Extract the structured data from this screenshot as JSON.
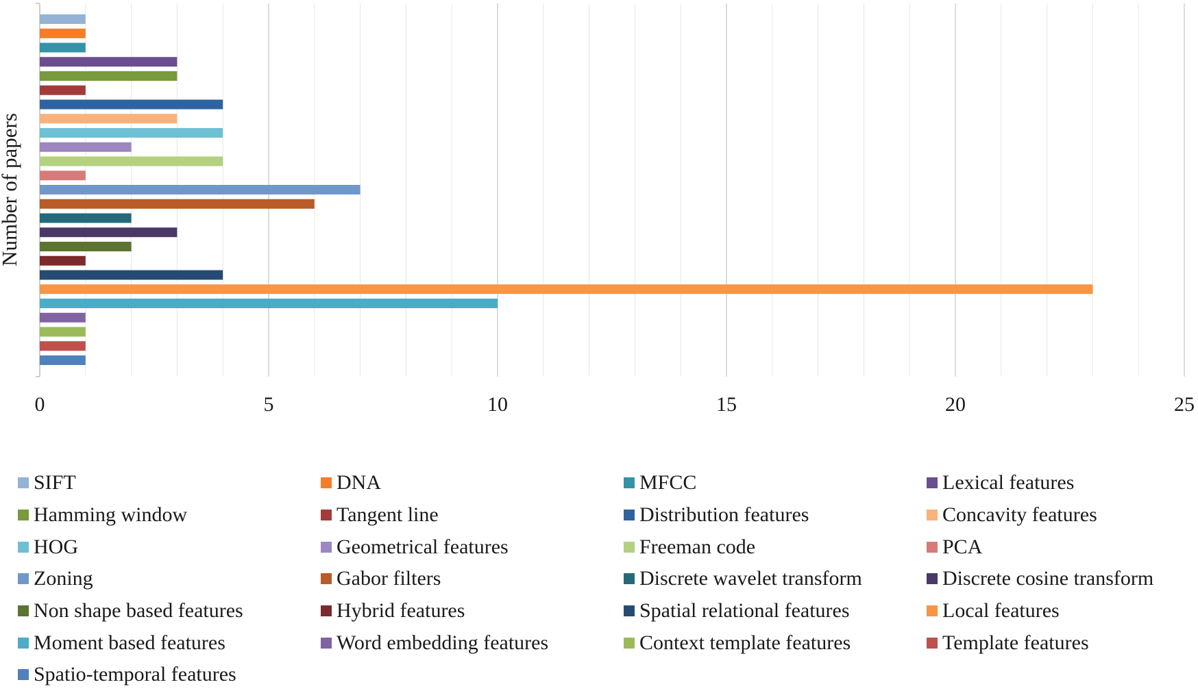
{
  "chart_data": {
    "type": "bar",
    "orientation": "horizontal",
    "title": "",
    "xlabel": "",
    "ylabel": "Number of papers",
    "xlim": [
      0,
      25
    ],
    "x_ticks": [
      0,
      5,
      10,
      15,
      20,
      25
    ],
    "grid": "vertical",
    "legend_position": "bottom",
    "series": [
      {
        "name": "SIFT",
        "value": 1,
        "color": "#95B3D7"
      },
      {
        "name": "DNA",
        "value": 1,
        "color": "#F57D29"
      },
      {
        "name": "MFCC",
        "value": 1,
        "color": "#3593A8"
      },
      {
        "name": "Lexical features",
        "value": 3,
        "color": "#6A4E8E"
      },
      {
        "name": "Hamming window",
        "value": 3,
        "color": "#7A9A3E"
      },
      {
        "name": "Tangent line",
        "value": 1,
        "color": "#A33B3B"
      },
      {
        "name": "Distribution features",
        "value": 4,
        "color": "#2F63A0"
      },
      {
        "name": "Concavity features",
        "value": 3,
        "color": "#F9B27A"
      },
      {
        "name": "HOG",
        "value": 4,
        "color": "#6EC0D5"
      },
      {
        "name": "Geometrical features",
        "value": 2,
        "color": "#9D87C0"
      },
      {
        "name": "Freeman code",
        "value": 4,
        "color": "#B3D17F"
      },
      {
        "name": "PCA",
        "value": 1,
        "color": "#D67B7A"
      },
      {
        "name": "Zoning",
        "value": 7,
        "color": "#7097CB"
      },
      {
        "name": "Gabor filters",
        "value": 6,
        "color": "#B85C28"
      },
      {
        "name": "Discrete wavelet transform",
        "value": 2,
        "color": "#246A7A"
      },
      {
        "name": "Discrete cosine transform",
        "value": 3,
        "color": "#4A3866"
      },
      {
        "name": "Non shape based features",
        "value": 2,
        "color": "#5D7431"
      },
      {
        "name": "Hybrid features",
        "value": 1,
        "color": "#7D2A2C"
      },
      {
        "name": "Spatial relational features",
        "value": 4,
        "color": "#254B74"
      },
      {
        "name": "Local features",
        "value": 23,
        "color": "#F79646"
      },
      {
        "name": "Moment based features",
        "value": 10,
        "color": "#4BACC6"
      },
      {
        "name": "Word embedding features",
        "value": 1,
        "color": "#8064A2"
      },
      {
        "name": "Context template features",
        "value": 1,
        "color": "#9BBB59"
      },
      {
        "name": "Template features",
        "value": 1,
        "color": "#C0504D"
      },
      {
        "name": "Spatio-temporal features",
        "value": 1,
        "color": "#4F81BD"
      }
    ]
  }
}
